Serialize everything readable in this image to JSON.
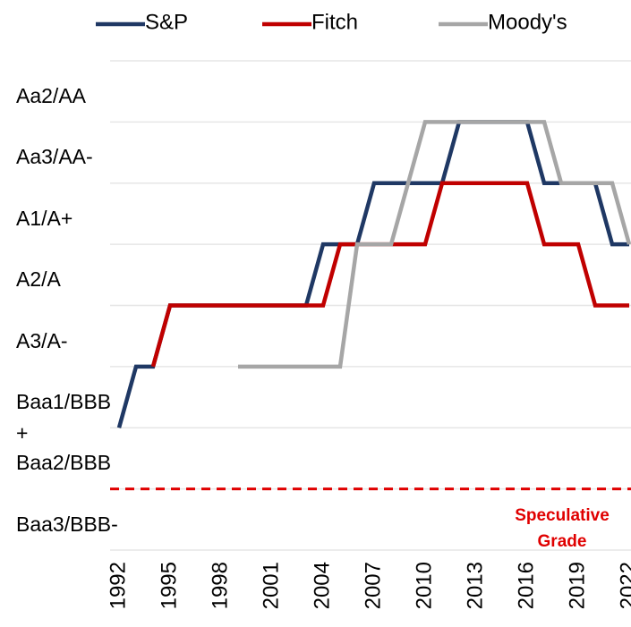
{
  "chart_data": {
    "type": "line",
    "x": [
      1992,
      1993,
      1994,
      1995,
      1996,
      1997,
      1998,
      1999,
      2000,
      2001,
      2002,
      2003,
      2004,
      2005,
      2006,
      2007,
      2008,
      2009,
      2010,
      2011,
      2012,
      2013,
      2014,
      2015,
      2016,
      2017,
      2018,
      2019,
      2020,
      2021,
      2022
    ],
    "xlim": [
      1992,
      2022
    ],
    "xticks": [
      1992,
      1995,
      1998,
      2001,
      2004,
      2007,
      2010,
      2013,
      2016,
      2019,
      2022
    ],
    "ylim": [
      0,
      8
    ],
    "yticks": [
      {
        "value": 1,
        "label": "Baa3/BBB-"
      },
      {
        "value": 2,
        "label": "Baa2/BBB"
      },
      {
        "value": 3,
        "label": "Baa1/BBB+"
      },
      {
        "value": 4,
        "label": "A3/A-"
      },
      {
        "value": 5,
        "label": "A2/A"
      },
      {
        "value": 6,
        "label": "A1/A+"
      },
      {
        "value": 7,
        "label": "Aa3/AA-"
      },
      {
        "value": 8,
        "label": "Aa2/AA"
      }
    ],
    "grid": true,
    "legend": "top",
    "reference_line": {
      "value": 1,
      "label": "Speculative Grade",
      "color": "#e00000"
    },
    "series": [
      {
        "name": "S&P",
        "color": "#1f3864",
        "values": [
          2,
          3,
          3,
          4,
          4,
          4,
          4,
          4,
          4,
          4,
          4,
          4,
          5,
          5,
          5,
          6,
          6,
          6,
          6,
          6,
          7,
          7,
          7,
          7,
          7,
          6,
          6,
          6,
          6,
          5,
          5
        ]
      },
      {
        "name": "Fitch",
        "color": "#c00000",
        "values": [
          null,
          null,
          3,
          4,
          4,
          4,
          4,
          4,
          4,
          4,
          4,
          4,
          4,
          5,
          5,
          5,
          5,
          5,
          5,
          6,
          6,
          6,
          6,
          6,
          6,
          5,
          5,
          5,
          4,
          4,
          4
        ]
      },
      {
        "name": "Moody's",
        "color": "#a6a6a6",
        "values": [
          null,
          null,
          null,
          null,
          null,
          null,
          null,
          3,
          3,
          3,
          3,
          3,
          3,
          3,
          5,
          5,
          5,
          6,
          7,
          7,
          7,
          7,
          7,
          7,
          7,
          7,
          6,
          6,
          6,
          6,
          5
        ]
      }
    ]
  }
}
